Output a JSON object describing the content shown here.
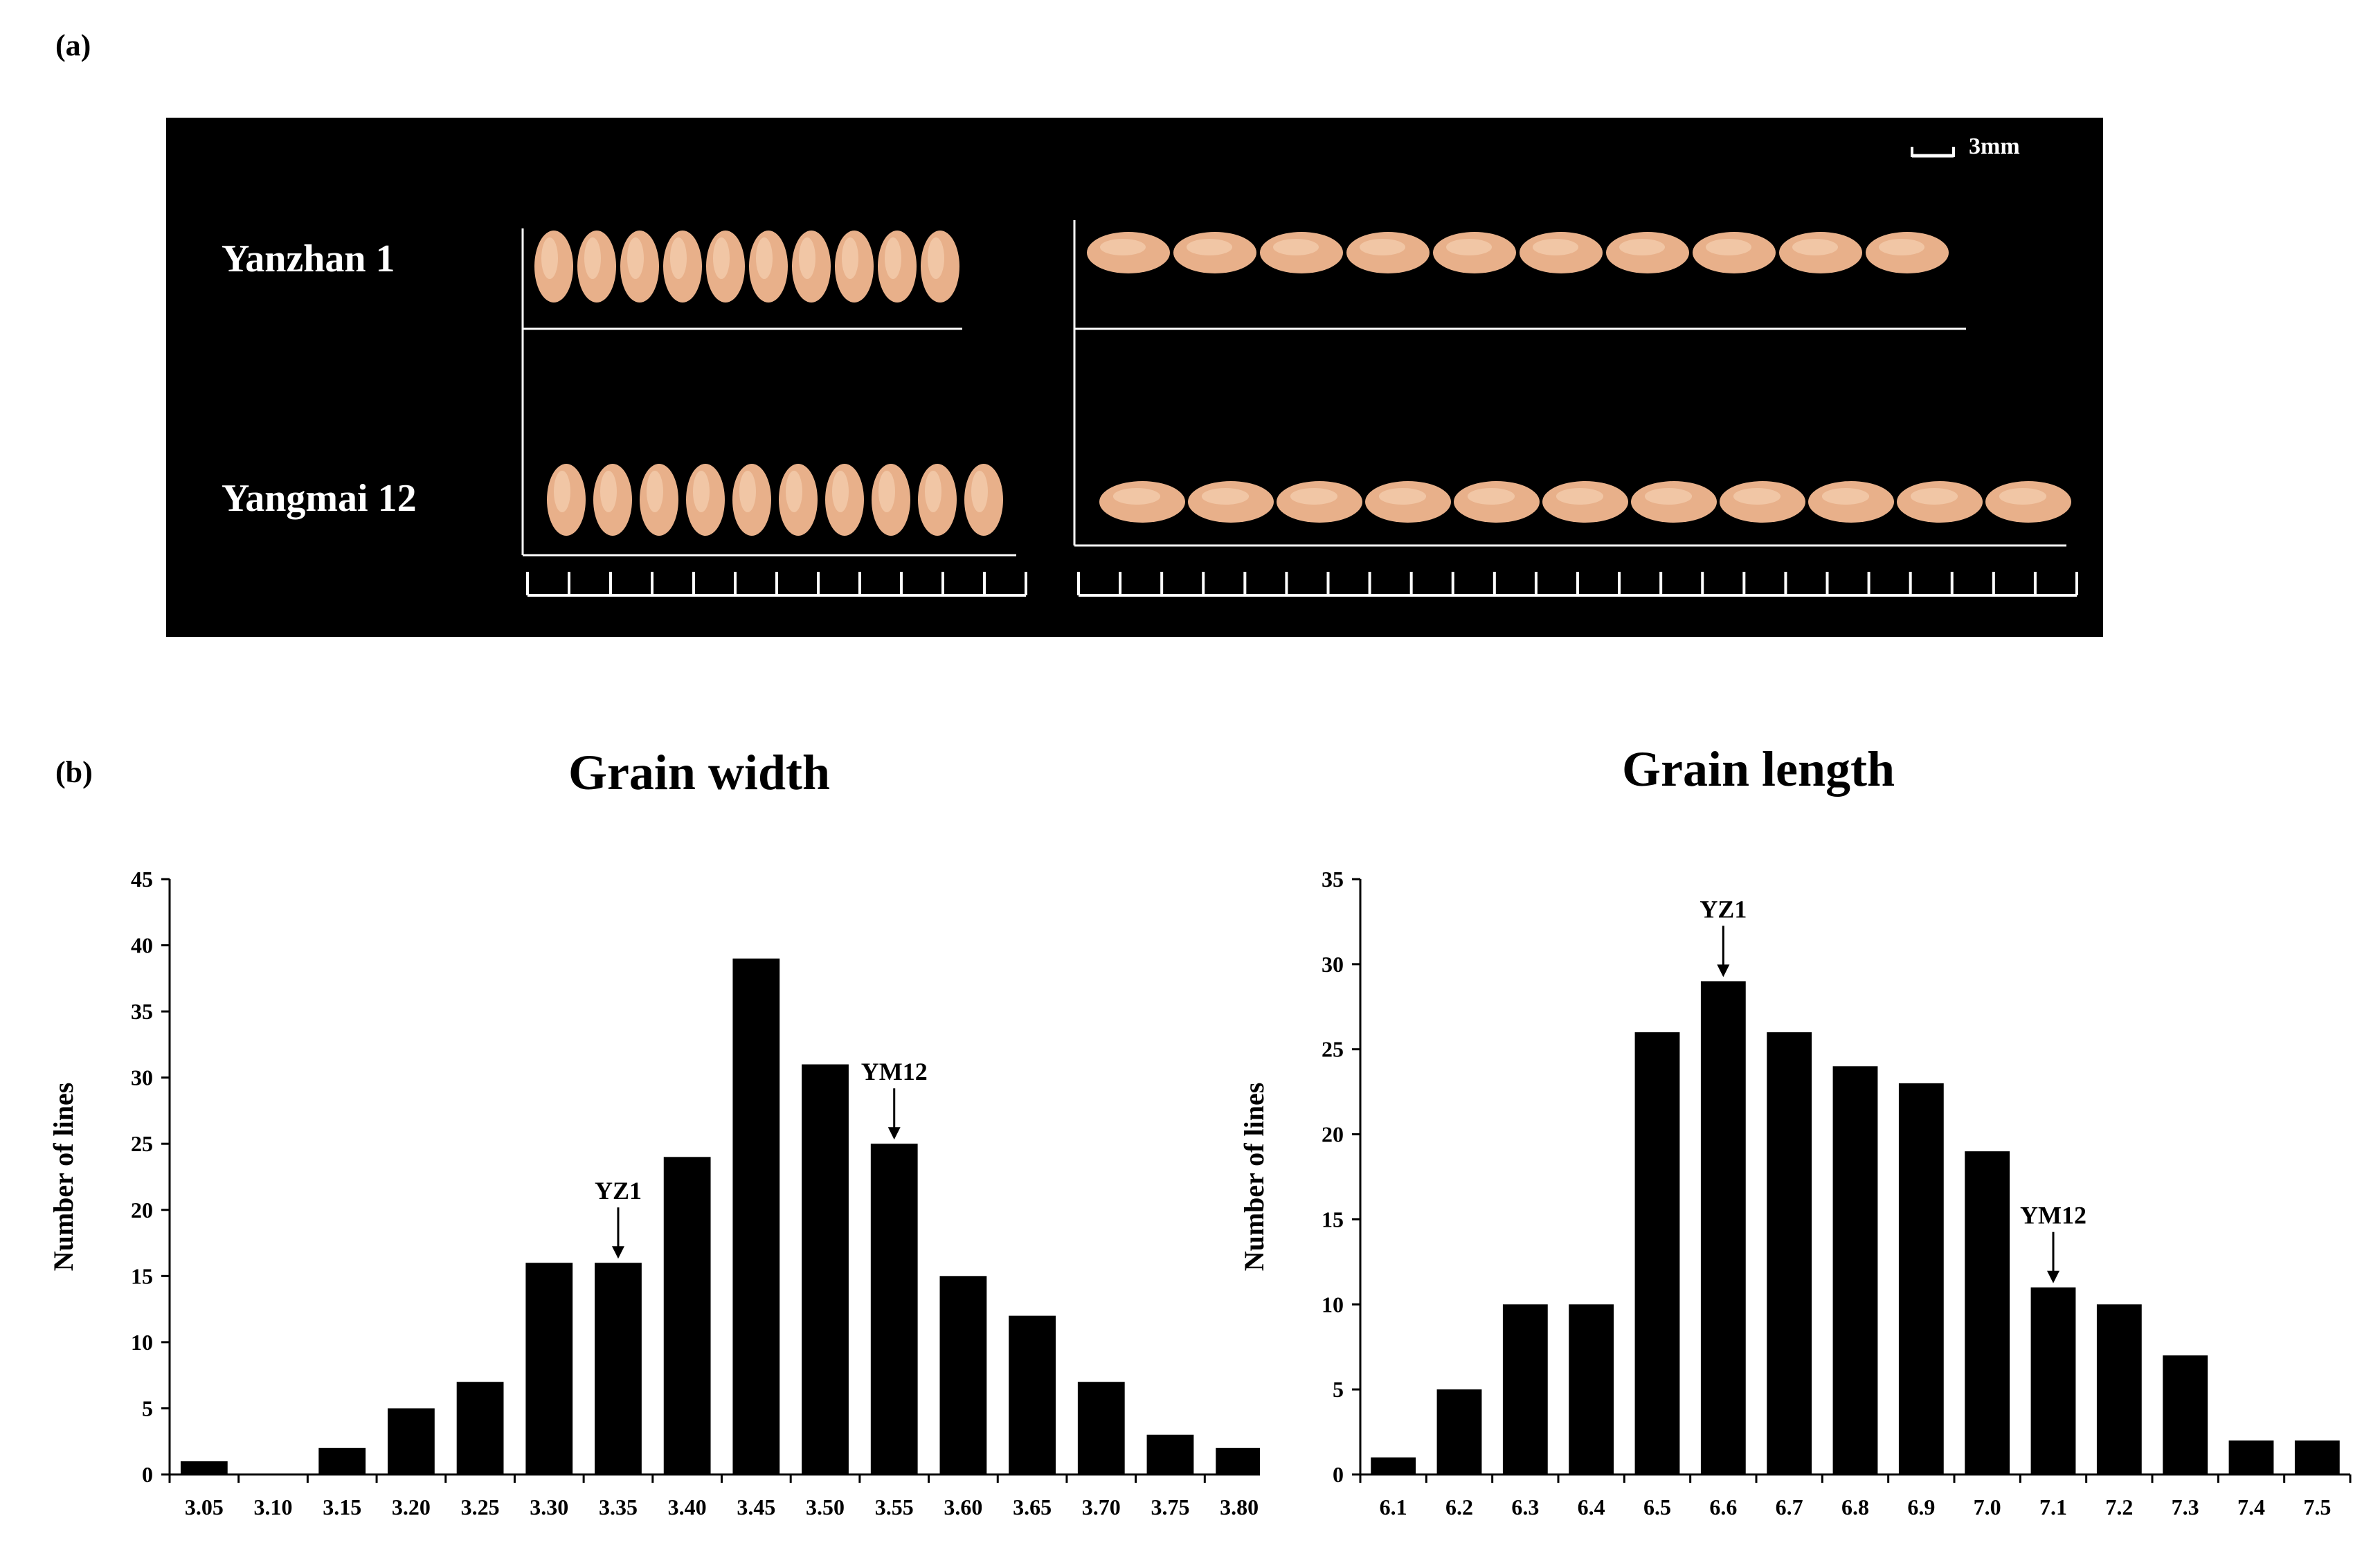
{
  "panels": {
    "a": "(a)",
    "b": "(b)"
  },
  "photo": {
    "variety_1": "Yanzhan 1",
    "variety_2": "Yangmai 12",
    "scale_bar": "3mm"
  },
  "chart_data": [
    {
      "type": "bar",
      "title": "Grain width",
      "xlabel": "",
      "ylabel": "Number of lines",
      "categories": [
        "3.05",
        "3.10",
        "3.15",
        "3.20",
        "3.25",
        "3.30",
        "3.35",
        "3.40",
        "3.45",
        "3.50",
        "3.55",
        "3.60",
        "3.65",
        "3.70",
        "3.75",
        "3.80"
      ],
      "values": [
        1,
        0,
        2,
        5,
        7,
        16,
        16,
        24,
        39,
        31,
        25,
        15,
        12,
        7,
        3,
        2
      ],
      "ylim": [
        0,
        45
      ],
      "yticks": [
        0,
        5,
        10,
        15,
        20,
        25,
        30,
        35,
        40,
        45
      ],
      "annotations": [
        {
          "label": "YZ1",
          "category": "3.35"
        },
        {
          "label": "YM12",
          "category": "3.55"
        }
      ]
    },
    {
      "type": "bar",
      "title": "Grain length",
      "xlabel": "",
      "ylabel": "Number of lines",
      "categories": [
        "6.1",
        "6.2",
        "6.3",
        "6.4",
        "6.5",
        "6.6",
        "6.7",
        "6.8",
        "6.9",
        "7.0",
        "7.1",
        "7.2",
        "7.3",
        "7.4",
        "7.5"
      ],
      "values": [
        1,
        5,
        10,
        10,
        26,
        29,
        26,
        24,
        23,
        19,
        11,
        10,
        7,
        2,
        2
      ],
      "ylim": [
        0,
        35
      ],
      "yticks": [
        0,
        5,
        10,
        15,
        20,
        25,
        30,
        35
      ],
      "annotations": [
        {
          "label": "YZ1",
          "category": "6.6"
        },
        {
          "label": "YM12",
          "category": "7.1"
        }
      ]
    }
  ]
}
